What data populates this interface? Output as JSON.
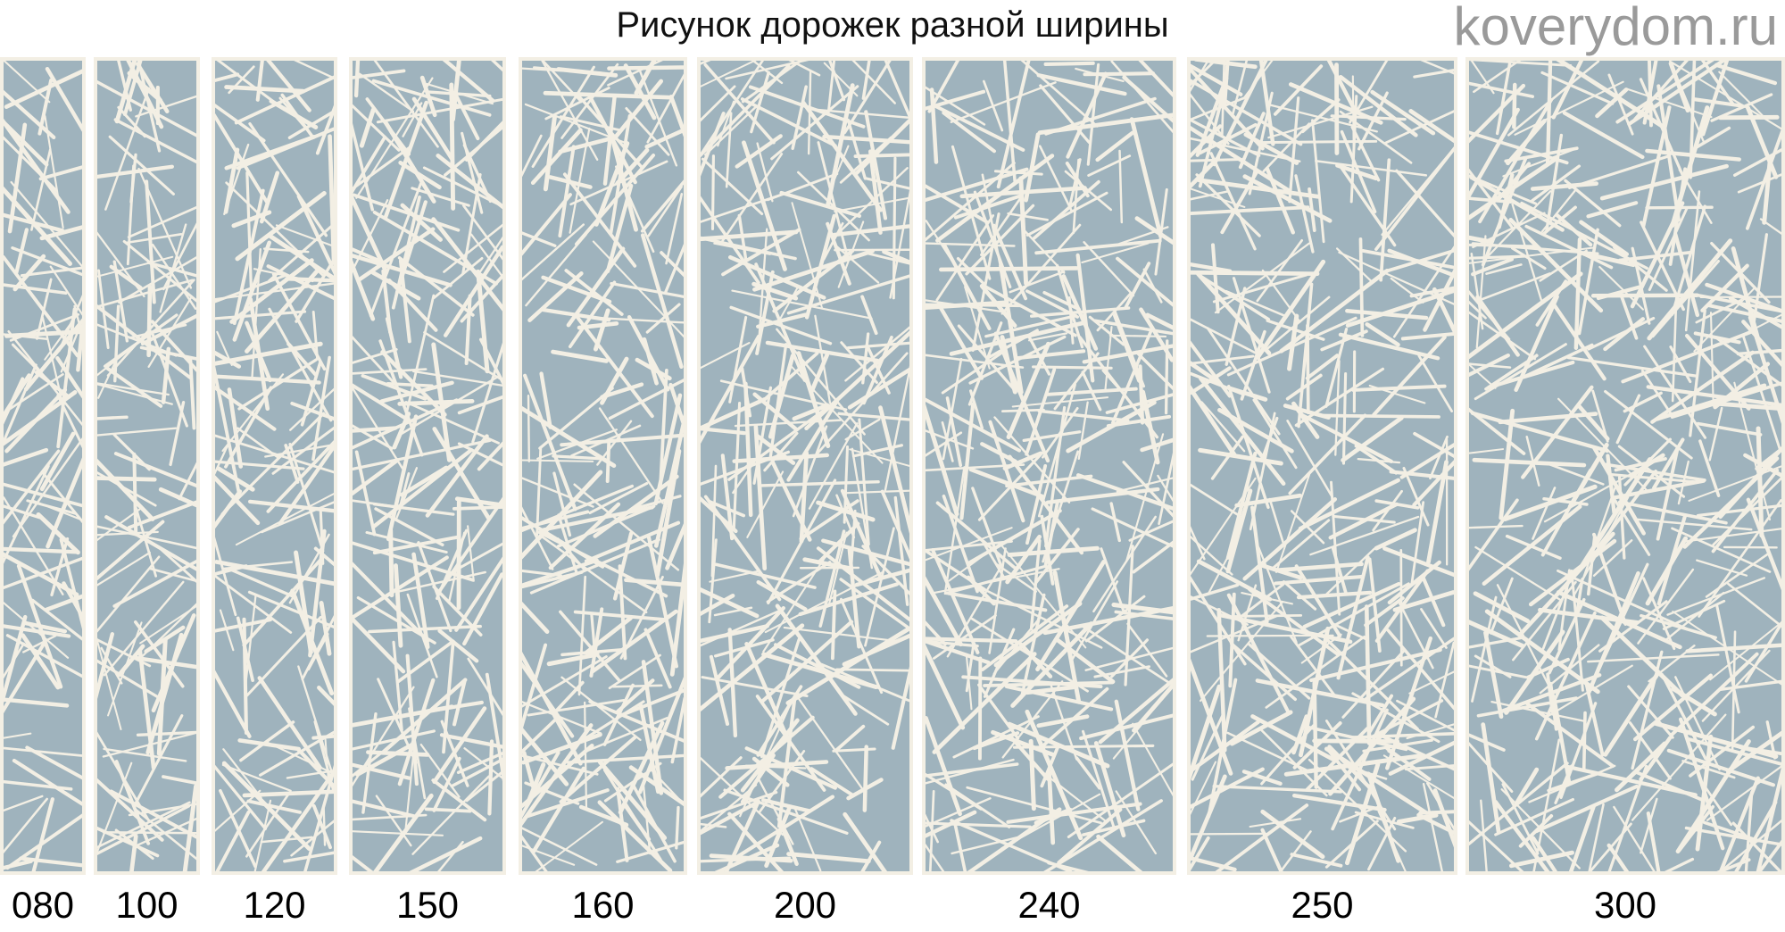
{
  "title": "Рисунок дорожек разной ширины",
  "colors": {
    "field": "#9fb3bd",
    "lines": "#f3efe4"
  },
  "runners": [
    {
      "label": "080"
    },
    {
      "label": "100"
    },
    {
      "label": "120"
    },
    {
      "label": "150"
    },
    {
      "label": "160"
    },
    {
      "label": "200"
    },
    {
      "label": "240"
    },
    {
      "label": "250"
    },
    {
      "label": "300"
    }
  ],
  "watermark": "koverydom.ru"
}
